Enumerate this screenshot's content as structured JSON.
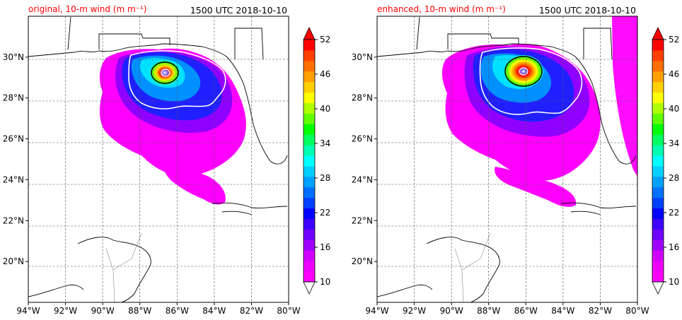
{
  "chart_data": [
    {
      "type": "heatmap",
      "title_left": "original, 10-m wind (m m⁻¹)",
      "title_right": "1500 UTC 2018-10-10",
      "xlabel": "",
      "ylabel": "",
      "xlim": [
        -94,
        -80
      ],
      "ylim": [
        18,
        32
      ],
      "x_ticks": [
        "94°W",
        "92°W",
        "90°W",
        "88°W",
        "86°W",
        "84°W",
        "82°W",
        "80°W"
      ],
      "y_ticks": [
        "20°N",
        "22°N",
        "24°N",
        "26°N",
        "28°N",
        "30°N"
      ],
      "grid": true,
      "storm_center": {
        "lon": -86.2,
        "lat": 29.35
      },
      "max_wind_approx": 46,
      "colorbar": {
        "ticks": [
          "10",
          "16",
          "22",
          "28",
          "34",
          "40",
          "46",
          "52"
        ],
        "min": 10,
        "max": 52,
        "extend": "both"
      }
    },
    {
      "type": "heatmap",
      "title_left": "enhanced, 10-m wind (m m⁻¹)",
      "title_right": "1500 UTC 2018-10-10",
      "xlabel": "",
      "ylabel": "",
      "xlim": [
        -94,
        -80
      ],
      "ylim": [
        18,
        32
      ],
      "x_ticks": [
        "94°W",
        "92°W",
        "90°W",
        "88°W",
        "86°W",
        "84°W",
        "82°W",
        "80°W"
      ],
      "y_ticks": [
        "20°N",
        "22°N",
        "24°N",
        "26°N",
        "28°N",
        "30°N"
      ],
      "grid": true,
      "storm_center": {
        "lon": -86.1,
        "lat": 29.4
      },
      "max_wind_approx": 54,
      "colorbar": {
        "ticks": [
          "10",
          "16",
          "22",
          "28",
          "34",
          "40",
          "46",
          "52"
        ],
        "min": 10,
        "max": 52,
        "extend": "both"
      }
    }
  ],
  "colors": {
    "scale": [
      "#ff00ff",
      "#f000ff",
      "#d000ff",
      "#a000ff",
      "#7000ff",
      "#4000ff",
      "#0000ff",
      "#0040ff",
      "#0070ff",
      "#00a0ff",
      "#00d0ff",
      "#00ffff",
      "#00ffb0",
      "#00ff60",
      "#00ff00",
      "#60ff00",
      "#b0ff00",
      "#ffff00",
      "#ffd000",
      "#ffa000",
      "#ff7000",
      "#ff4000",
      "#ff0000"
    ],
    "title_accent": "#ff0000",
    "grid": "#555555"
  }
}
